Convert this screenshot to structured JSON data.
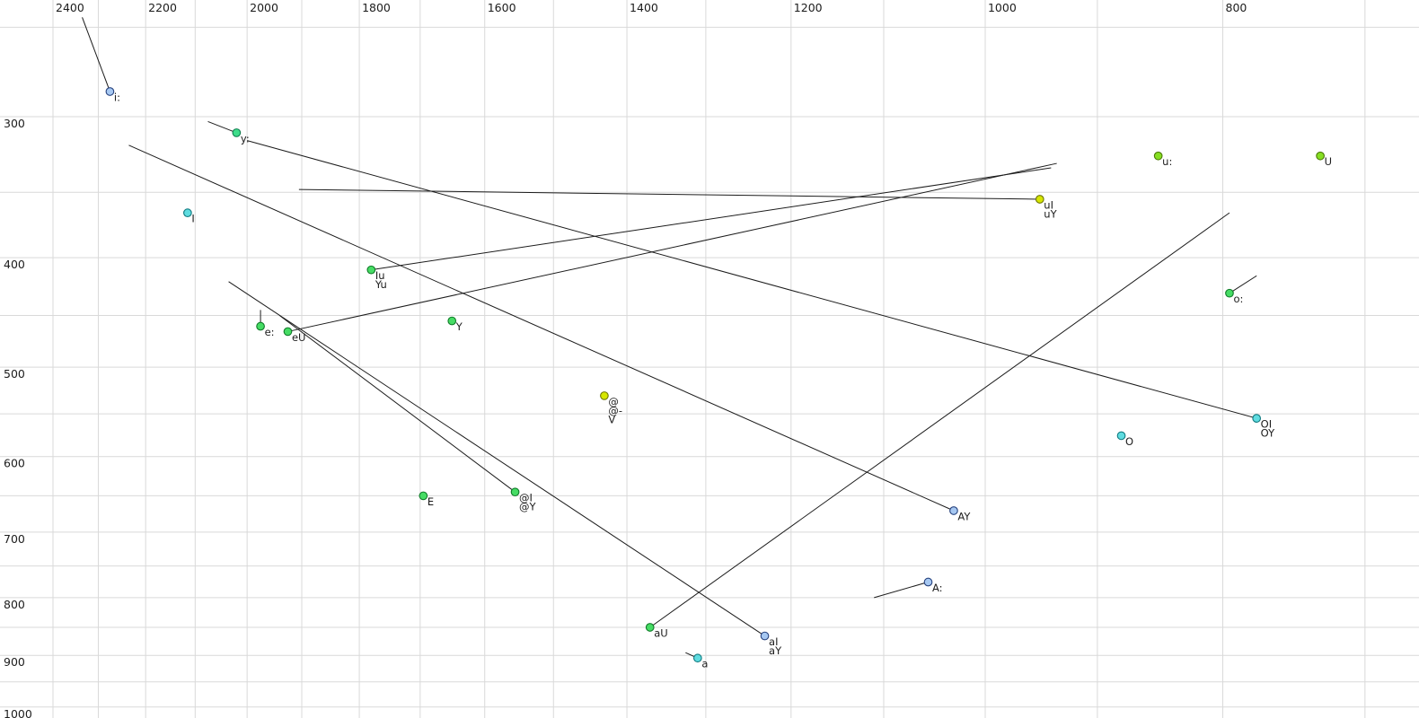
{
  "chart_data": {
    "type": "scatter",
    "title": "",
    "x_axis": {
      "tick_labels": [
        2400,
        2200,
        2000,
        1800,
        1600,
        1400,
        1200,
        1000,
        800
      ],
      "grid_from": 2400,
      "grid_to": 700,
      "grid_step": 100,
      "scale": "log",
      "direction": "reversed-left-to-right",
      "labels_position": "top"
    },
    "y_axis": {
      "tick_labels": [
        300,
        400,
        500,
        600,
        700,
        800,
        900,
        1000
      ],
      "grid_from": 250,
      "grid_to": 1000,
      "grid_step": 50,
      "scale": "log",
      "direction": "increasing-downward",
      "labels_position": "left"
    },
    "grid": true,
    "legend": false,
    "points": [
      {
        "labels": [
          "i:"
        ],
        "f2": 2275,
        "f1": 285,
        "color": "blue",
        "glide": {
          "f2": 2335,
          "f1": 245
        }
      },
      {
        "labels": [
          "y:"
        ],
        "f2": 2020,
        "f1": 310,
        "color": "green_teal",
        "glide": {
          "f2": 2075,
          "f1": 303
        }
      },
      {
        "labels": [
          "I"
        ],
        "f2": 2115,
        "f1": 365,
        "color": "cyan"
      },
      {
        "labels": [
          "u:"
        ],
        "f2": 850,
        "f1": 325,
        "color": "yellow_green"
      },
      {
        "labels": [
          "U"
        ],
        "f2": 730,
        "f1": 325,
        "color": "yellow_green"
      },
      {
        "labels": [
          "uI",
          "uY"
        ],
        "f2": 950,
        "f1": 355,
        "color": "yellow",
        "glide": {
          "f2": 1905,
          "f1": 348
        }
      },
      {
        "labels": [
          "Iu",
          "Yu"
        ],
        "f2": 1780,
        "f1": 410,
        "color": "green",
        "glide": {
          "f2": 940,
          "f1": 333
        }
      },
      {
        "labels": [
          "o:"
        ],
        "f2": 795,
        "f1": 430,
        "color": "green",
        "glide": {
          "f2": 775,
          "f1": 415
        }
      },
      {
        "labels": [
          "e:"
        ],
        "f2": 1975,
        "f1": 460,
        "color": "green",
        "glide": {
          "f2": 1975,
          "f1": 445
        }
      },
      {
        "labels": [
          "eU"
        ],
        "f2": 1925,
        "f1": 465,
        "color": "green",
        "glide": {
          "f2": 935,
          "f1": 330
        }
      },
      {
        "labels": [
          "Y"
        ],
        "f2": 1650,
        "f1": 455,
        "color": "green"
      },
      {
        "labels": [
          "@",
          "@-",
          "V"
        ],
        "f2": 1430,
        "f1": 530,
        "color": "yellow"
      },
      {
        "labels": [
          "OI",
          "OY"
        ],
        "f2": 775,
        "f1": 555,
        "color": "cyan",
        "glide": {
          "f2": 2000,
          "f1": 315
        }
      },
      {
        "labels": [
          "O"
        ],
        "f2": 880,
        "f1": 575,
        "color": "cyan"
      },
      {
        "labels": [
          "E"
        ],
        "f2": 1695,
        "f1": 650,
        "color": "green"
      },
      {
        "labels": [
          "@I",
          "@Y"
        ],
        "f2": 1555,
        "f1": 645,
        "color": "green",
        "glide": {
          "f2": 1940,
          "f1": 450
        }
      },
      {
        "labels": [
          "AY"
        ],
        "f2": 1030,
        "f1": 670,
        "color": "blue",
        "glide": {
          "f2": 2235,
          "f1": 318
        }
      },
      {
        "labels": [
          "A:"
        ],
        "f2": 1055,
        "f1": 775,
        "color": "blue",
        "glide": {
          "f2": 1110,
          "f1": 800
        }
      },
      {
        "labels": [
          "aU"
        ],
        "f2": 1370,
        "f1": 850,
        "color": "green",
        "glide": {
          "f2": 795,
          "f1": 365
        }
      },
      {
        "labels": [
          "aI",
          "aY"
        ],
        "f2": 1230,
        "f1": 865,
        "color": "blue",
        "glide": {
          "f2": 2035,
          "f1": 420
        }
      },
      {
        "labels": [
          "a"
        ],
        "f2": 1310,
        "f1": 905,
        "color": "cyan",
        "glide": {
          "f2": 1325,
          "f1": 895
        }
      }
    ]
  },
  "colors": {
    "background": "#ffffff",
    "grid": "#d9d9d9",
    "trace": "#1c1c1c",
    "text": "#1c1c1c",
    "dot_palette": {
      "blue": {
        "fill": "#a6c8f2",
        "stroke": "#27427e"
      },
      "cyan": {
        "fill": "#5fdce0",
        "stroke": "#117a80"
      },
      "green": {
        "fill": "#46dc64",
        "stroke": "#0f7a28"
      },
      "green_teal": {
        "fill": "#3edc8a",
        "stroke": "#0c7a4c"
      },
      "yellow_green": {
        "fill": "#86df22",
        "stroke": "#4c7a08"
      },
      "yellow": {
        "fill": "#d6e600",
        "stroke": "#6d7400"
      }
    }
  }
}
